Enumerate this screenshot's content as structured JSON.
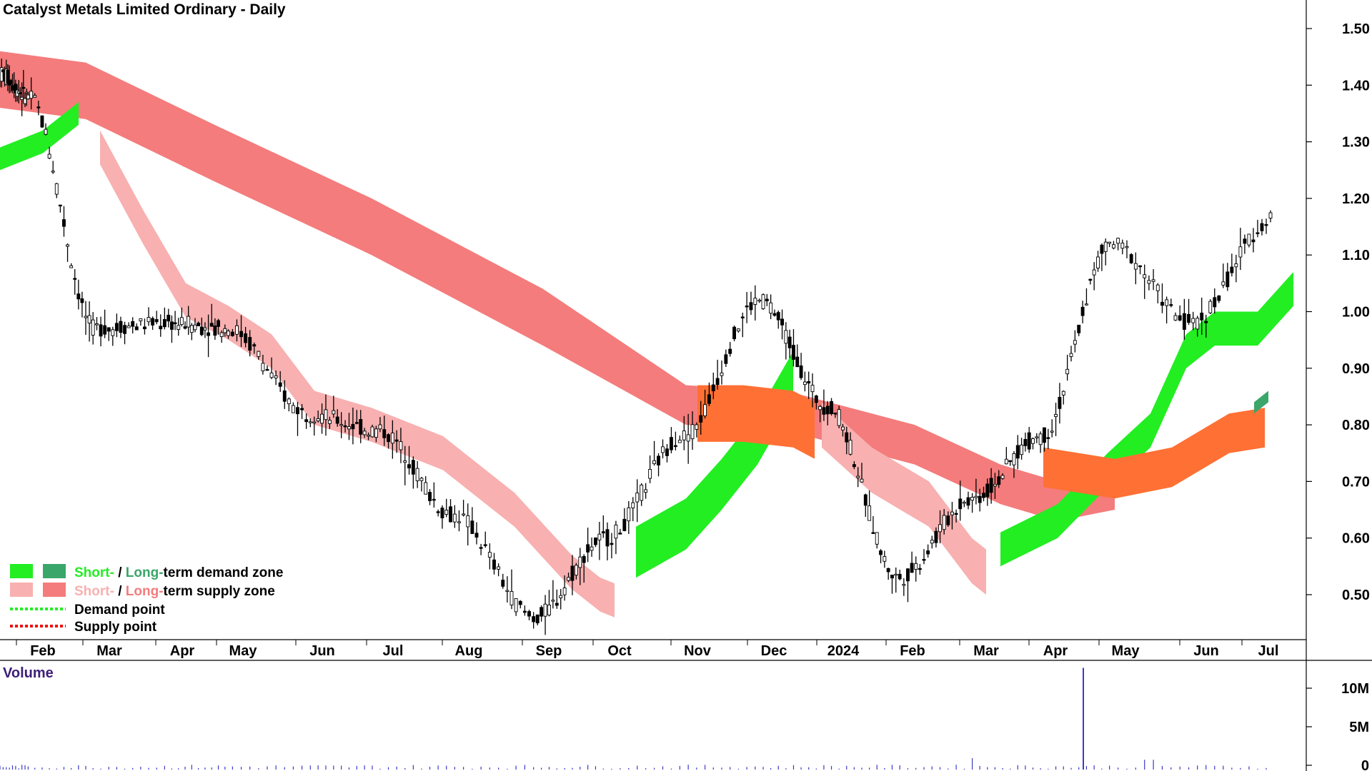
{
  "chart_data": {
    "type": "candlestick",
    "title": "Catalyst Metals Limited Ordinary - Daily",
    "price_axis": {
      "ylim": [
        0.43,
        1.55
      ],
      "ticks": [
        "1.50",
        "1.40",
        "1.30",
        "1.20",
        "1.10",
        "1.00",
        "0.90",
        "0.80",
        "0.70",
        "0.60",
        "0.50"
      ]
    },
    "x_axis": {
      "months": [
        "Feb",
        "Mar",
        "Apr",
        "May",
        "Jun",
        "Jul",
        "Aug",
        "Sep",
        "Oct",
        "Nov",
        "Dec",
        "2024",
        "Feb",
        "Mar",
        "Apr",
        "May",
        "Jun",
        "Jul"
      ]
    },
    "price_series": {
      "name": "Close",
      "months": [
        "Jan",
        "Feb",
        "Mar",
        "Apr",
        "May",
        "Jun",
        "Jul",
        "Aug",
        "Sep",
        "Oct",
        "Nov",
        "Dec",
        "2024",
        "Feb",
        "Mar",
        "Apr",
        "May",
        "Jun",
        "Jul"
      ],
      "close": [
        1.42,
        1.38,
        0.97,
        0.98,
        0.97,
        0.82,
        0.79,
        0.64,
        0.46,
        0.6,
        0.78,
        1.02,
        0.83,
        0.53,
        0.67,
        0.78,
        1.12,
        0.98,
        1.16
      ]
    },
    "zones": {
      "short_term_supply": {
        "color": "#f8b0b0",
        "months": [
          "Feb",
          "Mar",
          "Apr",
          "May",
          "Jun",
          "Jul",
          "Aug",
          "Sep",
          "Oct",
          "Nov",
          "Dec",
          "2024",
          "Feb",
          "Mar"
        ]
      },
      "long_term_supply": {
        "color": "#f47c7c",
        "months": [
          "Feb",
          "Mar",
          "Apr",
          "May",
          "Jun",
          "Jul",
          "Aug",
          "Sep",
          "Oct",
          "Nov",
          "Dec",
          "2024",
          "Feb",
          "Mar",
          "Apr",
          "May"
        ]
      },
      "short_term_demand": {
        "color": "#22ee22",
        "months": [
          "Jan",
          "Feb",
          "Oct",
          "Nov",
          "Dec",
          "Mar",
          "Apr",
          "May",
          "Jun",
          "Jul"
        ]
      },
      "long_term_demand": {
        "color": "#3aa66a",
        "months": [
          "Jul"
        ]
      },
      "overlap": {
        "color": "#ff7034"
      }
    },
    "volume": {
      "label": "Volume",
      "ticks": [
        "10M",
        "5M",
        "0"
      ],
      "spike_month": "Apr",
      "spike_value_m": 12.5
    },
    "legend": [
      {
        "short": "Short-",
        "sep": " / ",
        "long": "Long-",
        "rest": "term demand zone",
        "short_color": "#22ee22",
        "long_color": "#3aa66a"
      },
      {
        "short": "Short-",
        "sep": " / ",
        "long": "Long-",
        "rest": "term supply zone",
        "short_color": "#f8b0b0",
        "long_color": "#f47c7c"
      },
      {
        "text": "Demand point",
        "color": "#22ee22"
      },
      {
        "text": "Supply point",
        "color": "#ee1111"
      }
    ],
    "legend_position": "bottom-left",
    "grid": false
  }
}
